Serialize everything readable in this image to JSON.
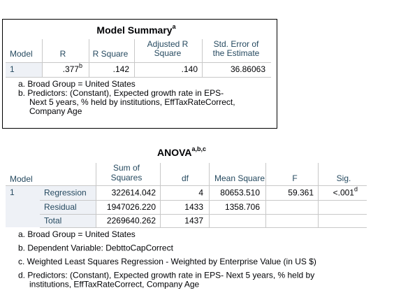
{
  "model_summary": {
    "title": "Model Summary",
    "title_note": "a",
    "headers": {
      "model": "Model",
      "r": "R",
      "r_square": "R Square",
      "adj_r_square": [
        "Adjusted R",
        "Square"
      ],
      "std_error": [
        "Std. Error of",
        "the Estimate"
      ]
    },
    "rows": [
      {
        "model": "1",
        "r": ".377",
        "r_note": "b",
        "r_square": ".142",
        "adj_r_square": ".140",
        "std_error": "36.86063"
      }
    ],
    "footnotes": [
      [
        "a. Broad Group = United States"
      ],
      [
        "b. Predictors: (Constant), Expected growth rate in EPS-",
        "Next 5 years, % held by institutions, EffTaxRateCorrect,",
        "Company Age"
      ]
    ]
  },
  "anova": {
    "title": "ANOVA",
    "title_note": "a,b,c",
    "headers": {
      "model": "Model",
      "sum_of_squares": [
        "Sum of",
        "Squares"
      ],
      "df": "df",
      "mean_square": "Mean Square",
      "f": "F",
      "sig": "Sig."
    },
    "model": "1",
    "rows": [
      {
        "label": "Regression",
        "sum_of_squares": "322614.042",
        "df": "4",
        "mean_square": "80653.510",
        "f": "59.361",
        "sig": "<.001",
        "sig_note": "d"
      },
      {
        "label": "Residual",
        "sum_of_squares": "1947026.220",
        "df": "1433",
        "mean_square": "1358.706"
      },
      {
        "label": "Total",
        "sum_of_squares": "2269640.262",
        "df": "1437"
      }
    ],
    "footnotes": [
      [
        "a. Broad Group = United States"
      ],
      [
        "b. Dependent Variable: DebttoCapCorrect"
      ],
      [
        "c. Weighted Least Squares Regression - Weighted by Enterprise Value (in US $)"
      ],
      [
        "d. Predictors: (Constant), Expected growth rate in EPS- Next 5 years, % held by",
        "institutions, EffTaxRateCorrect, Company Age"
      ]
    ]
  }
}
